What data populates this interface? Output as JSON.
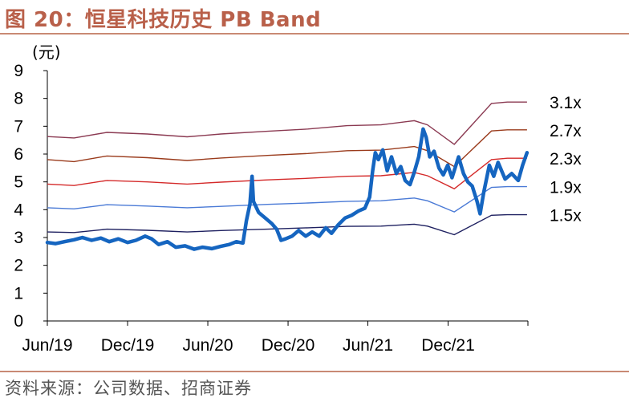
{
  "figure": {
    "title": "图 20：恒星科技历史 PB Band",
    "source": "资料来源：公司数据、招商证券"
  },
  "chart_data": {
    "type": "line",
    "title": "",
    "ylabel": "(元)",
    "xlabel": "",
    "ylim": [
      0,
      9
    ],
    "yticks": [
      0,
      1,
      2,
      3,
      4,
      5,
      6,
      7,
      8,
      9
    ],
    "xlim": [
      "2019-06-01",
      "2022-06-01"
    ],
    "xticks": [
      {
        "date": "2019-06-01",
        "label": "Jun/19"
      },
      {
        "date": "2019-12-01",
        "label": "Dec/19"
      },
      {
        "date": "2020-06-01",
        "label": "Jun/20"
      },
      {
        "date": "2020-12-01",
        "label": "Dec/20"
      },
      {
        "date": "2021-06-01",
        "label": "Jun/21"
      },
      {
        "date": "2021-12-01",
        "label": "Dec/21"
      }
    ],
    "grid": false,
    "bands": [
      {
        "name": "3.1x",
        "color": "#8b3a52",
        "points": [
          [
            "2019-06-01",
            6.63
          ],
          [
            "2019-08-01",
            6.58
          ],
          [
            "2019-10-15",
            6.78
          ],
          [
            "2020-01-15",
            6.72
          ],
          [
            "2020-04-15",
            6.62
          ],
          [
            "2020-07-01",
            6.72
          ],
          [
            "2020-10-15",
            6.82
          ],
          [
            "2021-01-15",
            6.9
          ],
          [
            "2021-04-15",
            7.02
          ],
          [
            "2021-07-01",
            7.05
          ],
          [
            "2021-09-15",
            7.2
          ],
          [
            "2021-10-15",
            7.05
          ],
          [
            "2021-12-15",
            6.35
          ],
          [
            "2022-03-10",
            7.82
          ],
          [
            "2022-04-15",
            7.87
          ],
          [
            "2022-05-30",
            7.87
          ]
        ]
      },
      {
        "name": "2.7x",
        "color": "#9a3b1c",
        "points": [
          [
            "2019-06-01",
            5.8
          ],
          [
            "2019-08-01",
            5.73
          ],
          [
            "2019-10-15",
            5.93
          ],
          [
            "2020-01-15",
            5.87
          ],
          [
            "2020-04-15",
            5.77
          ],
          [
            "2020-07-01",
            5.86
          ],
          [
            "2020-10-15",
            5.95
          ],
          [
            "2021-01-15",
            6.02
          ],
          [
            "2021-04-15",
            6.12
          ],
          [
            "2021-07-01",
            6.14
          ],
          [
            "2021-09-15",
            6.27
          ],
          [
            "2021-10-15",
            6.12
          ],
          [
            "2021-12-15",
            5.55
          ],
          [
            "2022-03-10",
            6.83
          ],
          [
            "2022-04-15",
            6.87
          ],
          [
            "2022-05-30",
            6.87
          ]
        ]
      },
      {
        "name": "2.3x",
        "color": "#d42a2a",
        "points": [
          [
            "2019-06-01",
            4.92
          ],
          [
            "2019-08-01",
            4.87
          ],
          [
            "2019-10-15",
            5.05
          ],
          [
            "2020-01-15",
            5.0
          ],
          [
            "2020-04-15",
            4.92
          ],
          [
            "2020-07-01",
            4.99
          ],
          [
            "2020-10-15",
            5.07
          ],
          [
            "2021-01-15",
            5.13
          ],
          [
            "2021-04-15",
            5.2
          ],
          [
            "2021-07-01",
            5.22
          ],
          [
            "2021-09-15",
            5.34
          ],
          [
            "2021-10-15",
            5.22
          ],
          [
            "2021-12-15",
            4.75
          ],
          [
            "2022-03-10",
            5.8
          ],
          [
            "2022-04-15",
            5.85
          ],
          [
            "2022-05-30",
            5.85
          ]
        ]
      },
      {
        "name": "1.9x",
        "color": "#4a7ad6",
        "points": [
          [
            "2019-06-01",
            4.07
          ],
          [
            "2019-08-01",
            4.03
          ],
          [
            "2019-10-15",
            4.18
          ],
          [
            "2020-01-15",
            4.13
          ],
          [
            "2020-04-15",
            4.07
          ],
          [
            "2020-07-01",
            4.12
          ],
          [
            "2020-10-15",
            4.19
          ],
          [
            "2021-01-15",
            4.24
          ],
          [
            "2021-04-15",
            4.3
          ],
          [
            "2021-07-01",
            4.32
          ],
          [
            "2021-09-15",
            4.42
          ],
          [
            "2021-10-15",
            4.32
          ],
          [
            "2021-12-15",
            3.92
          ],
          [
            "2022-03-10",
            4.8
          ],
          [
            "2022-04-15",
            4.83
          ],
          [
            "2022-05-30",
            4.83
          ]
        ]
      },
      {
        "name": "1.5x",
        "color": "#1e2060",
        "points": [
          [
            "2019-06-01",
            3.2
          ],
          [
            "2019-08-01",
            3.18
          ],
          [
            "2019-10-15",
            3.3
          ],
          [
            "2020-01-15",
            3.26
          ],
          [
            "2020-04-15",
            3.2
          ],
          [
            "2020-07-01",
            3.25
          ],
          [
            "2020-10-15",
            3.3
          ],
          [
            "2021-01-15",
            3.35
          ],
          [
            "2021-04-15",
            3.4
          ],
          [
            "2021-07-01",
            3.41
          ],
          [
            "2021-09-15",
            3.48
          ],
          [
            "2021-10-15",
            3.41
          ],
          [
            "2021-12-15",
            3.1
          ],
          [
            "2022-03-10",
            3.8
          ],
          [
            "2022-04-15",
            3.82
          ],
          [
            "2022-05-30",
            3.82
          ]
        ]
      }
    ],
    "price": {
      "color": "#1565c0",
      "points": [
        [
          "2019-06-01",
          2.82
        ],
        [
          "2019-06-20",
          2.78
        ],
        [
          "2019-07-10",
          2.85
        ],
        [
          "2019-08-01",
          2.92
        ],
        [
          "2019-08-20",
          3.0
        ],
        [
          "2019-09-10",
          2.9
        ],
        [
          "2019-10-01",
          2.98
        ],
        [
          "2019-10-20",
          2.85
        ],
        [
          "2019-11-10",
          2.95
        ],
        [
          "2019-12-01",
          2.82
        ],
        [
          "2019-12-20",
          2.9
        ],
        [
          "2020-01-10",
          3.05
        ],
        [
          "2020-01-25",
          2.95
        ],
        [
          "2020-02-10",
          2.75
        ],
        [
          "2020-03-01",
          2.85
        ],
        [
          "2020-03-20",
          2.65
        ],
        [
          "2020-04-10",
          2.7
        ],
        [
          "2020-05-01",
          2.58
        ],
        [
          "2020-05-20",
          2.65
        ],
        [
          "2020-06-10",
          2.6
        ],
        [
          "2020-06-30",
          2.68
        ],
        [
          "2020-07-20",
          2.75
        ],
        [
          "2020-08-05",
          2.85
        ],
        [
          "2020-08-20",
          2.8
        ],
        [
          "2020-08-28",
          3.6
        ],
        [
          "2020-09-05",
          4.2
        ],
        [
          "2020-09-10",
          5.2
        ],
        [
          "2020-09-13",
          4.3
        ],
        [
          "2020-09-25",
          3.9
        ],
        [
          "2020-10-10",
          3.7
        ],
        [
          "2020-10-25",
          3.5
        ],
        [
          "2020-11-05",
          3.3
        ],
        [
          "2020-11-15",
          2.9
        ],
        [
          "2020-11-25",
          2.95
        ],
        [
          "2020-12-10",
          3.05
        ],
        [
          "2020-12-25",
          3.25
        ],
        [
          "2021-01-10",
          3.05
        ],
        [
          "2021-01-25",
          3.2
        ],
        [
          "2021-02-10",
          3.05
        ],
        [
          "2021-02-25",
          3.35
        ],
        [
          "2021-03-10",
          3.15
        ],
        [
          "2021-03-25",
          3.45
        ],
        [
          "2021-04-10",
          3.7
        ],
        [
          "2021-04-25",
          3.8
        ],
        [
          "2021-05-10",
          3.95
        ],
        [
          "2021-05-25",
          4.05
        ],
        [
          "2021-06-05",
          4.45
        ],
        [
          "2021-06-12",
          5.4
        ],
        [
          "2021-06-18",
          6.05
        ],
        [
          "2021-06-25",
          5.8
        ],
        [
          "2021-07-05",
          6.15
        ],
        [
          "2021-07-15",
          5.4
        ],
        [
          "2021-07-25",
          5.9
        ],
        [
          "2021-08-05",
          5.3
        ],
        [
          "2021-08-15",
          5.55
        ],
        [
          "2021-08-25",
          5.05
        ],
        [
          "2021-09-05",
          4.9
        ],
        [
          "2021-09-15",
          5.35
        ],
        [
          "2021-09-25",
          5.9
        ],
        [
          "2021-10-05",
          6.9
        ],
        [
          "2021-10-12",
          6.6
        ],
        [
          "2021-10-20",
          5.9
        ],
        [
          "2021-10-30",
          6.1
        ],
        [
          "2021-11-10",
          5.5
        ],
        [
          "2021-11-20",
          5.25
        ],
        [
          "2021-11-30",
          5.6
        ],
        [
          "2021-12-10",
          5.15
        ],
        [
          "2021-12-25",
          5.9
        ],
        [
          "2022-01-05",
          5.3
        ],
        [
          "2022-01-15",
          5.0
        ],
        [
          "2022-01-25",
          4.85
        ],
        [
          "2022-02-05",
          4.3
        ],
        [
          "2022-02-12",
          3.85
        ],
        [
          "2022-02-20",
          4.6
        ],
        [
          "2022-03-05",
          5.6
        ],
        [
          "2022-03-15",
          5.2
        ],
        [
          "2022-03-25",
          5.7
        ],
        [
          "2022-04-10",
          5.1
        ],
        [
          "2022-04-25",
          5.3
        ],
        [
          "2022-05-10",
          5.05
        ],
        [
          "2022-05-20",
          5.6
        ],
        [
          "2022-05-30",
          6.05
        ]
      ]
    }
  }
}
